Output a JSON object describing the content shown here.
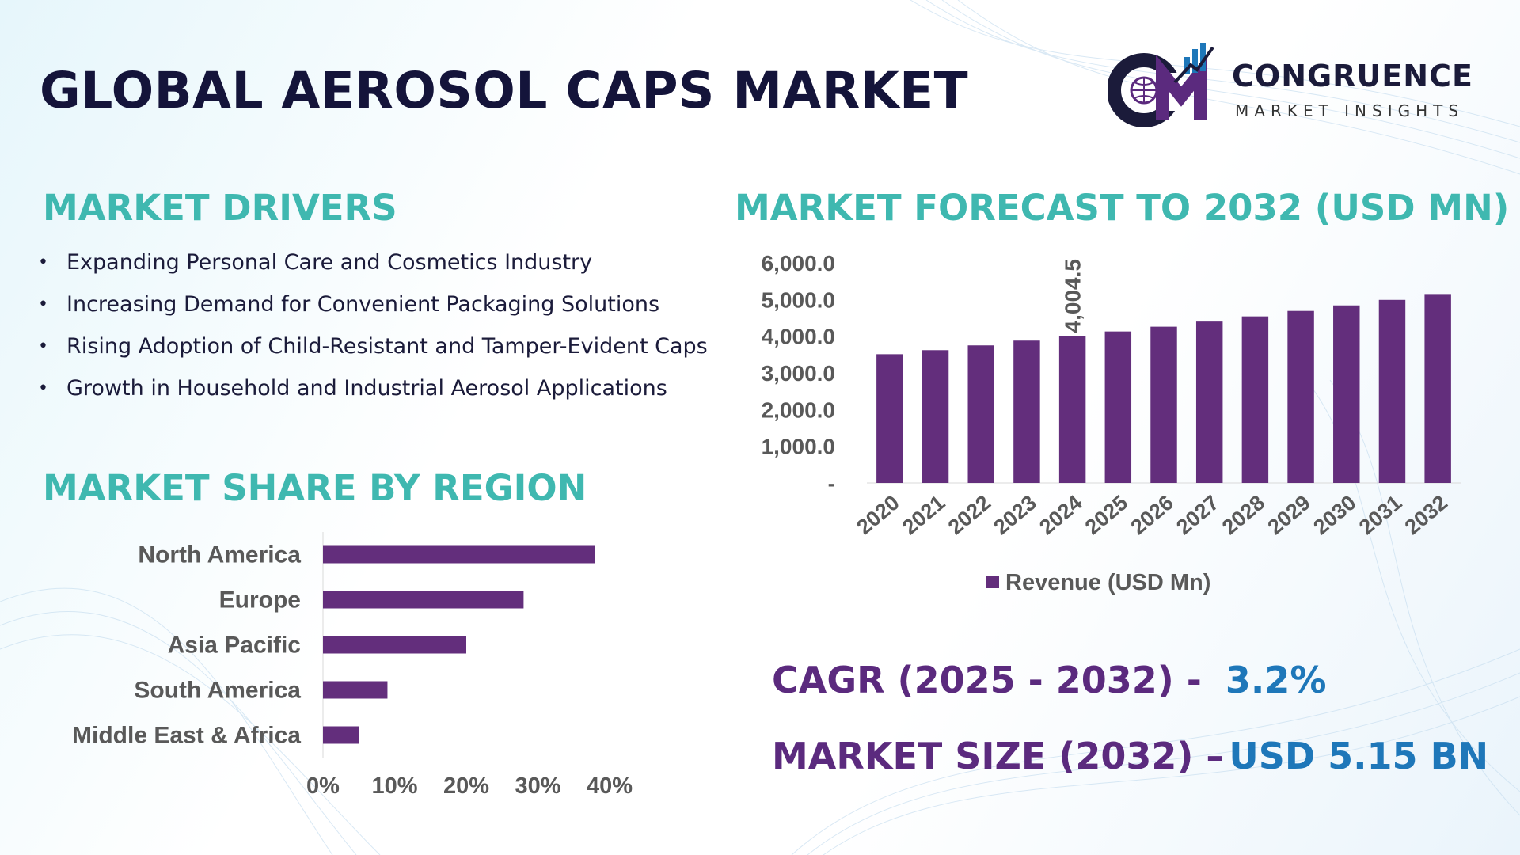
{
  "title": "GLOBAL AEROSOL CAPS MARKET",
  "logo": {
    "name": "CONGRUENCE",
    "tagline": "MARKET INSIGHTS",
    "colors": {
      "purple": "#5b2a7e",
      "blue": "#1e77b9",
      "navy": "#1b1b3a"
    }
  },
  "drivers": {
    "title": "MARKET DRIVERS",
    "items": [
      "Expanding Personal Care and Cosmetics Industry",
      "Increasing Demand for Convenient Packaging Solutions",
      "Rising Adoption of Child-Resistant and Tamper-Evident Caps",
      "Growth in Household and Industrial Aerosol Applications"
    ]
  },
  "forecast_title": "MARKET FORECAST TO 2032 (USD MN)",
  "region_title": "MARKET SHARE BY REGION",
  "cagr": {
    "label": "CAGR (2025 - 2032) -",
    "value": "3.2%"
  },
  "market_size": {
    "label": "MARKET SIZE (2032) –",
    "value": "USD 5.15 BN"
  },
  "colors": {
    "bar": "#632e7c",
    "heading": "#3fb8b0",
    "accent_blue": "#1e77b9",
    "accent_purple": "#5b2a7e"
  },
  "chart_data": [
    {
      "type": "bar",
      "orientation": "vertical",
      "title": "MARKET FORECAST TO 2032 (USD MN)",
      "categories": [
        "2020",
        "2021",
        "2022",
        "2023",
        "2024",
        "2025",
        "2026",
        "2027",
        "2028",
        "2029",
        "2030",
        "2031",
        "2032"
      ],
      "series": [
        {
          "name": "Revenue (USD Mn)",
          "values": [
            3510,
            3620,
            3750,
            3880,
            4004.5,
            4130,
            4260,
            4400,
            4540,
            4690,
            4840,
            4990,
            5150
          ]
        }
      ],
      "y_ticks": [
        "-",
        "1,000.0",
        "2,000.0",
        "3,000.0",
        "4,000.0",
        "5,000.0",
        "6,000.0"
      ],
      "ylim": [
        0,
        6000
      ],
      "data_labels": [
        {
          "category": "2024",
          "label": "4,004.5"
        }
      ],
      "legend": "bottom",
      "grid": false
    },
    {
      "type": "bar",
      "orientation": "horizontal",
      "title": "MARKET SHARE BY REGION",
      "categories": [
        "North America",
        "Europe",
        "Asia Pacific",
        "South America",
        "Middle East & Africa"
      ],
      "values": [
        38,
        28,
        20,
        9,
        5
      ],
      "x_ticks": [
        "0%",
        "10%",
        "20%",
        "30%",
        "40%"
      ],
      "xlim": [
        0,
        40
      ],
      "grid": false
    }
  ]
}
